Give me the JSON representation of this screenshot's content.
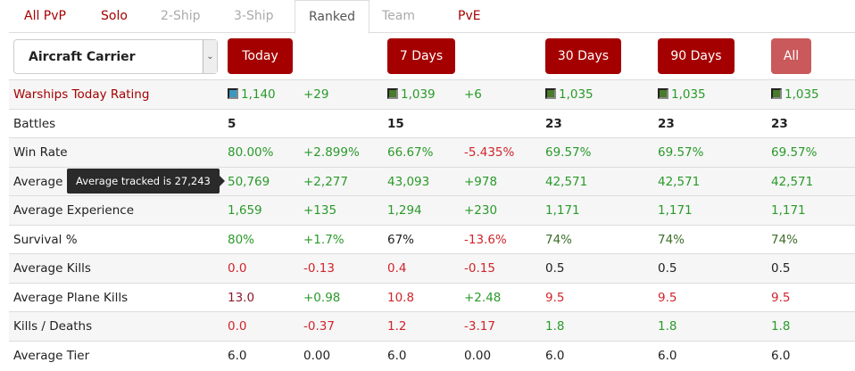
{
  "tabs": [
    {
      "label": "All PvP",
      "state": "red"
    },
    {
      "label": "Solo",
      "state": "red"
    },
    {
      "label": "2-Ship",
      "state": "gray"
    },
    {
      "label": "3-Ship",
      "state": "gray"
    },
    {
      "label": "Ranked",
      "state": "active"
    },
    {
      "label": "Team",
      "state": "gray"
    },
    {
      "label": "PvE",
      "state": "red"
    }
  ],
  "ship_class": "Aircraft Carrier",
  "periods": [
    "Today",
    "7 Days",
    "30 Days",
    "90 Days",
    "All"
  ],
  "tooltip": "Average tracked is 27,243",
  "colors": {
    "rating_today": "#3a98c2",
    "rating_other": "#4a7a2a"
  },
  "rows": [
    {
      "label": "Warships Today Rating",
      "rating": true,
      "cells": [
        [
          "1,140",
          "g"
        ],
        [
          "+29",
          "g"
        ],
        [
          "1,039",
          "g"
        ],
        [
          "+6",
          "g"
        ],
        [
          "1,035",
          "g"
        ],
        [
          "1,035",
          "g"
        ],
        [
          "1,035",
          "g"
        ]
      ]
    },
    {
      "label": "Battles",
      "cells": [
        [
          "5",
          "b"
        ],
        [
          "",
          ""
        ],
        [
          "15",
          "b"
        ],
        [
          "",
          ""
        ],
        [
          "23",
          "b"
        ],
        [
          "23",
          "b"
        ],
        [
          "23",
          "b"
        ]
      ]
    },
    {
      "label": "Win Rate",
      "cells": [
        [
          "80.00%",
          "g"
        ],
        [
          "+2.899%",
          "g"
        ],
        [
          "66.67%",
          "g"
        ],
        [
          "-5.435%",
          "r"
        ],
        [
          "69.57%",
          "g"
        ],
        [
          "69.57%",
          "g"
        ],
        [
          "69.57%",
          "g"
        ]
      ]
    },
    {
      "label": "Average",
      "cells": [
        [
          "50,769",
          "g"
        ],
        [
          "+2,277",
          "g"
        ],
        [
          "43,093",
          "g"
        ],
        [
          "+978",
          "g"
        ],
        [
          "42,571",
          "g"
        ],
        [
          "42,571",
          "g"
        ],
        [
          "42,571",
          "g"
        ]
      ]
    },
    {
      "label": "Average Experience",
      "cells": [
        [
          "1,659",
          "g"
        ],
        [
          "+135",
          "g"
        ],
        [
          "1,294",
          "g"
        ],
        [
          "+230",
          "g"
        ],
        [
          "1,171",
          "g"
        ],
        [
          "1,171",
          "g"
        ],
        [
          "1,171",
          "g"
        ]
      ]
    },
    {
      "label": "Survival %",
      "cells": [
        [
          "80%",
          "g"
        ],
        [
          "+1.7%",
          "g"
        ],
        [
          "67%",
          "k"
        ],
        [
          "-13.6%",
          "r"
        ],
        [
          "74%",
          "dg"
        ],
        [
          "74%",
          "dg"
        ],
        [
          "74%",
          "dg"
        ]
      ]
    },
    {
      "label": "Average Kills",
      "cells": [
        [
          "0.0",
          "r"
        ],
        [
          "-0.13",
          "r"
        ],
        [
          "0.4",
          "r"
        ],
        [
          "-0.15",
          "r"
        ],
        [
          "0.5",
          "k"
        ],
        [
          "0.5",
          "k"
        ],
        [
          "0.5",
          "k"
        ]
      ]
    },
    {
      "label": "Average Plane Kills",
      "cells": [
        [
          "13.0",
          "dr"
        ],
        [
          "+0.98",
          "g"
        ],
        [
          "10.8",
          "r"
        ],
        [
          "+2.48",
          "g"
        ],
        [
          "9.5",
          "r"
        ],
        [
          "9.5",
          "r"
        ],
        [
          "9.5",
          "r"
        ]
      ]
    },
    {
      "label": "Kills / Deaths",
      "cells": [
        [
          "0.0",
          "r"
        ],
        [
          "-0.37",
          "r"
        ],
        [
          "1.2",
          "r"
        ],
        [
          "-3.17",
          "r"
        ],
        [
          "1.8",
          "g"
        ],
        [
          "1.8",
          "g"
        ],
        [
          "1.8",
          "g"
        ]
      ]
    },
    {
      "label": "Average Tier",
      "cells": [
        [
          "6.0",
          "k"
        ],
        [
          "0.00",
          "k"
        ],
        [
          "6.0",
          "k"
        ],
        [
          "0.00",
          "k"
        ],
        [
          "6.0",
          "k"
        ],
        [
          "6.0",
          "k"
        ],
        [
          "6.0",
          "k"
        ]
      ]
    }
  ]
}
